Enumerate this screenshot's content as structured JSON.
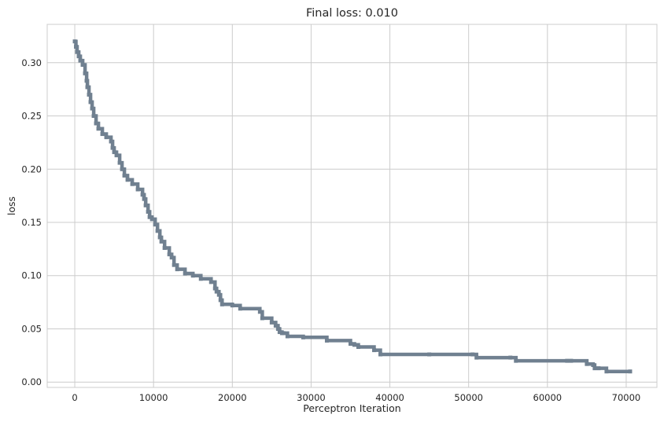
{
  "chart_data": {
    "type": "line",
    "title": "Final loss: 0.010",
    "xlabel": "Perceptron Iteration",
    "ylabel": "loss",
    "xlim": [
      -3500,
      73900
    ],
    "ylim": [
      -0.005,
      0.336
    ],
    "xticks": [
      0,
      10000,
      20000,
      30000,
      40000,
      50000,
      60000,
      70000
    ],
    "xtick_labels": [
      "0",
      "10000",
      "20000",
      "30000",
      "40000",
      "50000",
      "60000",
      "70000"
    ],
    "yticks": [
      0.0,
      0.05,
      0.1,
      0.15,
      0.2,
      0.25,
      0.3
    ],
    "ytick_labels": [
      "0.00",
      "0.05",
      "0.10",
      "0.15",
      "0.20",
      "0.25",
      "0.30"
    ],
    "grid": true,
    "style": "seaborn-whitegrid",
    "series": [
      {
        "color": "#708090",
        "marker": "square",
        "x": [
          0,
          150,
          300,
          500,
          700,
          1000,
          1300,
          1500,
          1600,
          1800,
          2000,
          2200,
          2400,
          2700,
          3000,
          3500,
          4000,
          4600,
          4800,
          5000,
          5300,
          5700,
          6000,
          6300,
          6700,
          7300,
          8000,
          8600,
          8800,
          9000,
          9300,
          9500,
          9800,
          10200,
          10500,
          10800,
          11000,
          11400,
          12000,
          12300,
          12600,
          13000,
          14000,
          15000,
          16000,
          17300,
          17800,
          18000,
          18300,
          18500,
          18700,
          20000,
          21000,
          23500,
          23800,
          25000,
          25500,
          25800,
          26000,
          26300,
          26500,
          27000,
          29000,
          32000,
          35000,
          35500,
          36000,
          38000,
          38800,
          45000,
          50500,
          51000,
          55300,
          56000,
          62500,
          63000,
          65000,
          65800,
          66000,
          66500,
          67500,
          70500
        ],
        "y": [
          0.32,
          0.315,
          0.31,
          0.306,
          0.302,
          0.298,
          0.29,
          0.283,
          0.277,
          0.27,
          0.263,
          0.257,
          0.25,
          0.243,
          0.238,
          0.233,
          0.23,
          0.226,
          0.22,
          0.216,
          0.213,
          0.206,
          0.2,
          0.194,
          0.19,
          0.186,
          0.181,
          0.176,
          0.172,
          0.166,
          0.16,
          0.155,
          0.153,
          0.148,
          0.142,
          0.136,
          0.132,
          0.126,
          0.12,
          0.117,
          0.11,
          0.106,
          0.102,
          0.1,
          0.097,
          0.094,
          0.088,
          0.085,
          0.082,
          0.077,
          0.073,
          0.072,
          0.069,
          0.066,
          0.06,
          0.056,
          0.053,
          0.05,
          0.047,
          0.046,
          0.046,
          0.043,
          0.042,
          0.039,
          0.036,
          0.035,
          0.033,
          0.03,
          0.026,
          0.026,
          0.026,
          0.023,
          0.023,
          0.02,
          0.02,
          0.02,
          0.017,
          0.016,
          0.013,
          0.013,
          0.01,
          0.01
        ]
      }
    ]
  }
}
